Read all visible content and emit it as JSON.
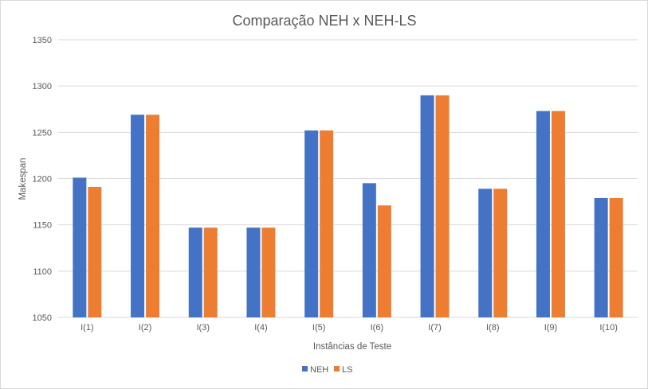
{
  "chart_data": {
    "type": "bar",
    "title": "Comparação NEH x NEH-LS",
    "xlabel": "Instâncias de Teste",
    "ylabel": "Makespan",
    "categories": [
      "I(1)",
      "I(2)",
      "I(3)",
      "I(4)",
      "I(5)",
      "I(6)",
      "I(7)",
      "I(8)",
      "I(9)",
      "I(10)"
    ],
    "series": [
      {
        "name": "NEH",
        "color": "#4472c4",
        "values": [
          1201,
          1269,
          1147,
          1147,
          1252,
          1195,
          1290,
          1189,
          1273,
          1179
        ]
      },
      {
        "name": "LS",
        "color": "#ed7d31",
        "values": [
          1191,
          1269,
          1147,
          1147,
          1252,
          1171,
          1290,
          1189,
          1273,
          1179
        ]
      }
    ],
    "ylim": [
      1050,
      1350
    ],
    "yticks": [
      1050,
      1100,
      1150,
      1200,
      1250,
      1300,
      1350
    ],
    "grid": true,
    "legend_position": "bottom"
  }
}
